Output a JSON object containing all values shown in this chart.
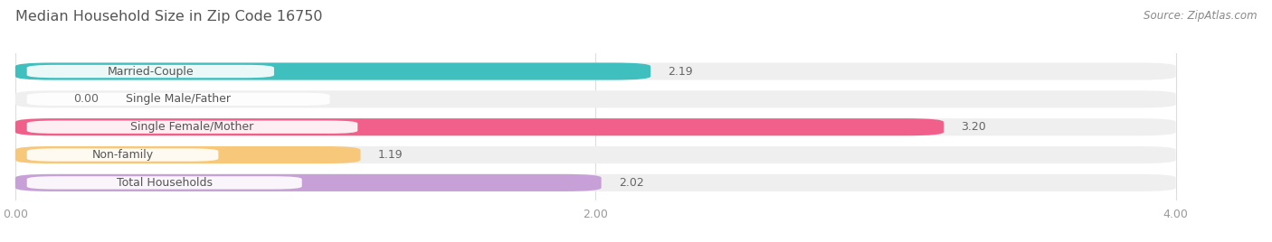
{
  "title": "Median Household Size in Zip Code 16750",
  "source": "Source: ZipAtlas.com",
  "categories": [
    "Married-Couple",
    "Single Male/Father",
    "Single Female/Mother",
    "Non-family",
    "Total Households"
  ],
  "values": [
    2.19,
    0.0,
    3.2,
    1.19,
    2.02
  ],
  "bar_colors": [
    "#40bfbf",
    "#a0b4e8",
    "#f0608a",
    "#f8c87a",
    "#c8a0d8"
  ],
  "bar_bg_color": "#efefef",
  "background_color": "#ffffff",
  "xlim": [
    0,
    4.0
  ],
  "xticks": [
    0.0,
    2.0,
    4.0
  ],
  "xtick_labels": [
    "0.00",
    "2.00",
    "4.00"
  ],
  "title_fontsize": 11.5,
  "label_fontsize": 9,
  "value_fontsize": 9,
  "source_fontsize": 8.5,
  "bar_height": 0.62,
  "title_color": "#555555",
  "tick_color": "#999999",
  "value_color": "#666666",
  "source_color": "#888888",
  "grid_color": "#dddddd",
  "label_text_color": "#555555"
}
